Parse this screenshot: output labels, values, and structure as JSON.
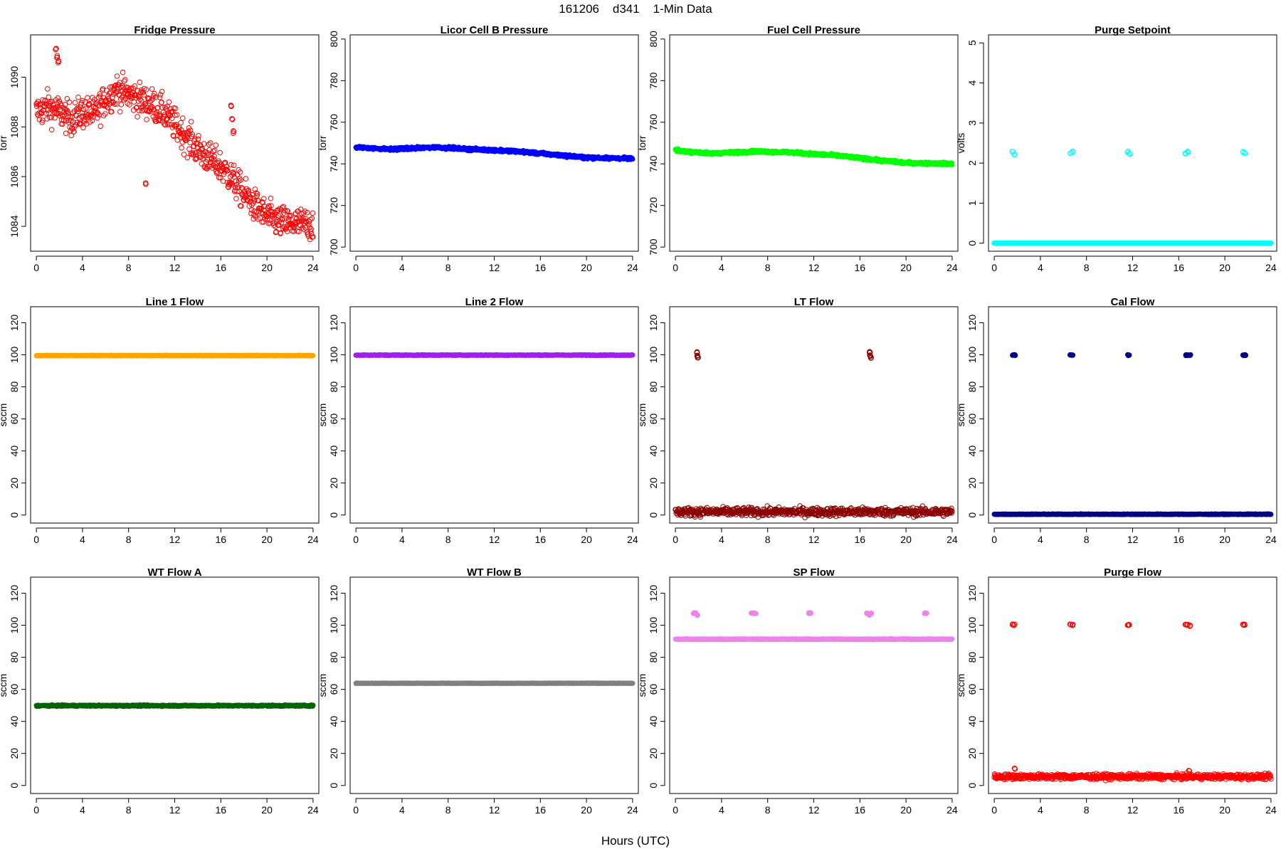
{
  "figure": {
    "suptitle": "161206    d341    1-Min Data",
    "xlabel": "Hours (UTC)"
  },
  "chart_data": [
    {
      "type": "scatter",
      "title": "Fridge Pressure",
      "ylabel": "torr",
      "color": "#ff0000",
      "marker": "open",
      "xlim": [
        -0.5,
        24.5
      ],
      "ylim": [
        1083,
        1091.7
      ],
      "xticks": [
        0,
        4,
        8,
        12,
        16,
        20,
        24
      ],
      "yticks": [
        1084,
        1086,
        1088,
        1090
      ],
      "trend": [
        [
          0,
          1088.6
        ],
        [
          1,
          1088.8
        ],
        [
          2,
          1088.6
        ],
        [
          3,
          1088.3
        ],
        [
          4,
          1088.6
        ],
        [
          5,
          1088.5
        ],
        [
          6,
          1089.1
        ],
        [
          7,
          1089.5
        ],
        [
          8,
          1089.3
        ],
        [
          9,
          1089.1
        ],
        [
          10,
          1088.9
        ],
        [
          11,
          1088.6
        ],
        [
          12,
          1088.1
        ],
        [
          13,
          1087.6
        ],
        [
          14,
          1087.1
        ],
        [
          15,
          1086.7
        ],
        [
          16,
          1086.4
        ],
        [
          17,
          1085.9
        ],
        [
          18,
          1085.3
        ],
        [
          19,
          1084.8
        ],
        [
          20,
          1084.4
        ],
        [
          21,
          1084.2
        ],
        [
          22,
          1084.1
        ],
        [
          23,
          1084.1
        ],
        [
          24,
          1084.1
        ]
      ],
      "noise": 0.32,
      "spikes": [
        [
          1.7,
          1091.1
        ],
        [
          1.8,
          1090.8
        ],
        [
          1.9,
          1090.6
        ],
        [
          9.5,
          1085.7
        ],
        [
          16.9,
          1088.8
        ],
        [
          17.0,
          1088.3
        ],
        [
          17.1,
          1087.8
        ]
      ]
    },
    {
      "type": "scatter",
      "title": "Licor Cell B Pressure",
      "ylabel": "torr",
      "color": "#0000ff",
      "marker": "filled",
      "xlim": [
        -0.5,
        24.5
      ],
      "ylim": [
        698,
        802
      ],
      "xticks": [
        0,
        4,
        8,
        12,
        16,
        20,
        24
      ],
      "yticks": [
        700,
        720,
        740,
        760,
        780,
        800
      ],
      "trend": [
        [
          0,
          748
        ],
        [
          3,
          747
        ],
        [
          7,
          748
        ],
        [
          10,
          747
        ],
        [
          14,
          746
        ],
        [
          18,
          744
        ],
        [
          20,
          743
        ],
        [
          24,
          742.5
        ]
      ],
      "noise": 0.3,
      "spikes": []
    },
    {
      "type": "scatter",
      "title": "Fuel Cell Pressure",
      "ylabel": "torr",
      "color": "#00ff00",
      "marker": "filled",
      "xlim": [
        -0.5,
        24.5
      ],
      "ylim": [
        698,
        802
      ],
      "xticks": [
        0,
        4,
        8,
        12,
        16,
        20,
        24
      ],
      "yticks": [
        700,
        720,
        740,
        760,
        780,
        800
      ],
      "trend": [
        [
          0,
          746.5
        ],
        [
          3,
          745
        ],
        [
          7,
          746
        ],
        [
          10,
          745.5
        ],
        [
          14,
          744
        ],
        [
          18,
          741.5
        ],
        [
          20,
          740.5
        ],
        [
          24,
          740
        ]
      ],
      "noise": 0.3,
      "spikes": []
    },
    {
      "type": "scatter",
      "title": "Purge Setpoint",
      "ylabel": "volts",
      "color": "#00ffff",
      "marker": "open",
      "xlim": [
        -0.5,
        24.5
      ],
      "ylim": [
        -0.2,
        5.2
      ],
      "xticks": [
        0,
        4,
        8,
        12,
        16,
        20,
        24
      ],
      "yticks": [
        0,
        1,
        2,
        3,
        4,
        5
      ],
      "trend": [
        [
          0,
          0
        ],
        [
          24,
          0
        ]
      ],
      "noise": 0.0,
      "spikes": [
        [
          1.6,
          2.28
        ],
        [
          1.75,
          2.22
        ],
        [
          6.6,
          2.24
        ],
        [
          6.8,
          2.28
        ],
        [
          11.6,
          2.28
        ],
        [
          11.75,
          2.23
        ],
        [
          16.6,
          2.24
        ],
        [
          16.8,
          2.28
        ],
        [
          21.6,
          2.28
        ],
        [
          21.75,
          2.24
        ]
      ]
    },
    {
      "type": "scatter",
      "title": "Line 1 Flow",
      "ylabel": "sccm",
      "color": "#ffa500",
      "marker": "filled",
      "xlim": [
        -0.5,
        24.5
      ],
      "ylim": [
        -5,
        130
      ],
      "xticks": [
        0,
        4,
        8,
        12,
        16,
        20,
        24
      ],
      "yticks": [
        0,
        20,
        40,
        60,
        80,
        100,
        120
      ],
      "trend": [
        [
          0,
          99.5
        ],
        [
          24,
          99.5
        ]
      ],
      "noise": 0.1,
      "spikes": []
    },
    {
      "type": "scatter",
      "title": "Line 2 Flow",
      "ylabel": "sccm",
      "color": "#a020f0",
      "marker": "filled",
      "xlim": [
        -0.5,
        24.5
      ],
      "ylim": [
        -5,
        130
      ],
      "xticks": [
        0,
        4,
        8,
        12,
        16,
        20,
        24
      ],
      "yticks": [
        0,
        20,
        40,
        60,
        80,
        100,
        120
      ],
      "trend": [
        [
          0,
          99.8
        ],
        [
          24,
          99.8
        ]
      ],
      "noise": 0.1,
      "spikes": []
    },
    {
      "type": "scatter",
      "title": "LT Flow",
      "ylabel": "sccm",
      "color": "#8b0000",
      "marker": "open",
      "xlim": [
        -0.5,
        24.5
      ],
      "ylim": [
        -5,
        130
      ],
      "xticks": [
        0,
        4,
        8,
        12,
        16,
        20,
        24
      ],
      "yticks": [
        0,
        20,
        40,
        60,
        80,
        100,
        120
      ],
      "trend": [
        [
          0,
          2
        ],
        [
          24,
          2
        ]
      ],
      "noise": 1.3,
      "spikes": [
        [
          1.85,
          101.5
        ],
        [
          1.9,
          99.5
        ],
        [
          1.95,
          98
        ],
        [
          16.85,
          101.5
        ],
        [
          16.9,
          99.5
        ],
        [
          16.95,
          98
        ]
      ]
    },
    {
      "type": "scatter",
      "title": "Cal Flow",
      "ylabel": "sccm",
      "color": "#00008b",
      "marker": "filled",
      "xlim": [
        -0.5,
        24.5
      ],
      "ylim": [
        -5,
        130
      ],
      "xticks": [
        0,
        4,
        8,
        12,
        16,
        20,
        24
      ],
      "yticks": [
        0,
        20,
        40,
        60,
        80,
        100,
        120
      ],
      "trend": [
        [
          0,
          0.5
        ],
        [
          24,
          0.5
        ]
      ],
      "noise": 0.1,
      "spikes": [
        [
          1.6,
          99.8
        ],
        [
          1.7,
          99.8
        ],
        [
          1.8,
          99.8
        ],
        [
          6.6,
          99.8
        ],
        [
          6.7,
          99.8
        ],
        [
          6.8,
          99.8
        ],
        [
          11.6,
          99.8
        ],
        [
          11.7,
          99.8
        ],
        [
          16.6,
          99.8
        ],
        [
          16.75,
          99.8
        ],
        [
          17.0,
          99.8
        ],
        [
          21.6,
          99.8
        ],
        [
          21.7,
          99.8
        ],
        [
          21.8,
          99.8
        ]
      ]
    },
    {
      "type": "scatter",
      "title": "WT Flow A",
      "ylabel": "sccm",
      "color": "#006400",
      "marker": "filled",
      "xlim": [
        -0.5,
        24.5
      ],
      "ylim": [
        -5,
        130
      ],
      "xticks": [
        0,
        4,
        8,
        12,
        16,
        20,
        24
      ],
      "yticks": [
        0,
        20,
        40,
        60,
        80,
        100,
        120
      ],
      "trend": [
        [
          0,
          49.8
        ],
        [
          24,
          49.8
        ]
      ],
      "noise": 0.2,
      "spikes": []
    },
    {
      "type": "scatter",
      "title": "WT Flow B",
      "ylabel": "sccm",
      "color": "#808080",
      "marker": "filled",
      "xlim": [
        -0.5,
        24.5
      ],
      "ylim": [
        -5,
        130
      ],
      "xticks": [
        0,
        4,
        8,
        12,
        16,
        20,
        24
      ],
      "yticks": [
        0,
        20,
        40,
        60,
        80,
        100,
        120
      ],
      "trend": [
        [
          0,
          63.8
        ],
        [
          24,
          63.8
        ]
      ],
      "noise": 0.05,
      "spikes": []
    },
    {
      "type": "scatter",
      "title": "SP Flow",
      "ylabel": "sccm",
      "color": "#ee82ee",
      "marker": "filled",
      "xlim": [
        -0.5,
        24.5
      ],
      "ylim": [
        -5,
        130
      ],
      "xticks": [
        0,
        4,
        8,
        12,
        16,
        20,
        24
      ],
      "yticks": [
        0,
        20,
        40,
        60,
        80,
        100,
        120
      ],
      "trend": [
        [
          0,
          91.3
        ],
        [
          24,
          91.3
        ]
      ],
      "noise": 0.1,
      "spikes": [
        [
          1.6,
          107.5
        ],
        [
          1.75,
          107.5
        ],
        [
          1.9,
          106.3
        ],
        [
          6.6,
          107.5
        ],
        [
          6.8,
          107.5
        ],
        [
          6.95,
          107.5
        ],
        [
          11.6,
          107.5
        ],
        [
          11.75,
          107.5
        ],
        [
          16.6,
          107.5
        ],
        [
          16.8,
          106.5
        ],
        [
          17.0,
          107.5
        ],
        [
          21.6,
          107.5
        ],
        [
          21.75,
          107.5
        ]
      ]
    },
    {
      "type": "scatter",
      "title": "Purge Flow",
      "ylabel": "sccm",
      "color": "#ff0000",
      "marker": "open",
      "xlim": [
        -0.5,
        24.5
      ],
      "ylim": [
        -5,
        130
      ],
      "xticks": [
        0,
        4,
        8,
        12,
        16,
        20,
        24
      ],
      "yticks": [
        0,
        20,
        40,
        60,
        80,
        100,
        120
      ],
      "trend": [
        [
          0,
          5.5
        ],
        [
          24,
          5.5
        ]
      ],
      "noise": 0.8,
      "spikes": [
        [
          1.6,
          100.2
        ],
        [
          1.75,
          100.2
        ],
        [
          6.6,
          100.2
        ],
        [
          6.8,
          100.2
        ],
        [
          11.6,
          100.2
        ],
        [
          11.7,
          100.2
        ],
        [
          16.6,
          100.2
        ],
        [
          16.75,
          100.2
        ],
        [
          17.0,
          99.5
        ],
        [
          21.6,
          100.2
        ],
        [
          21.7,
          100.2
        ],
        [
          1.8,
          10.5
        ],
        [
          16.9,
          9
        ]
      ]
    }
  ]
}
